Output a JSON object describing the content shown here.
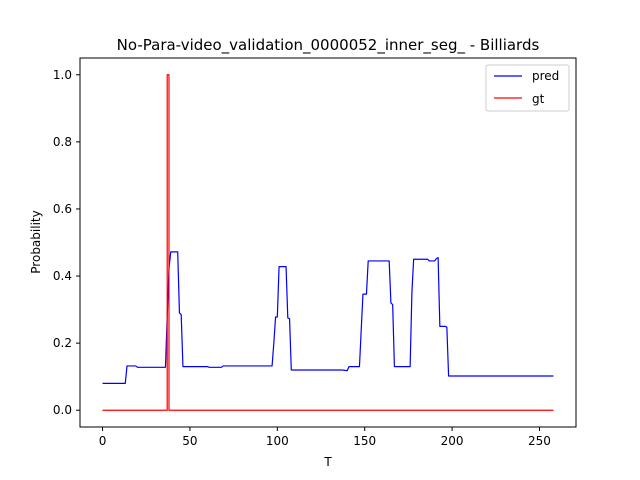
{
  "chart_data": {
    "type": "line",
    "title": "No-Para-video_validation_0000052_inner_seg_ - Billiards",
    "xlabel": "T",
    "ylabel": "Probability",
    "xlim": [
      -12.9,
      270.9
    ],
    "ylim": [
      -0.05,
      1.05
    ],
    "xticks": [
      0,
      50,
      100,
      150,
      200,
      250
    ],
    "yticks": [
      0.0,
      0.2,
      0.4,
      0.6,
      0.8,
      1.0
    ],
    "xtick_labels": [
      "0",
      "50",
      "100",
      "150",
      "200",
      "250"
    ],
    "ytick_labels": [
      "0.0",
      "0.2",
      "0.4",
      "0.6",
      "0.8",
      "1.0"
    ],
    "grid": false,
    "legend_position": "top-right",
    "series": [
      {
        "name": "pred",
        "color": "#0000ff",
        "x": [
          0,
          13,
          14,
          19,
          20,
          36,
          37,
          38,
          39,
          43,
          44,
          45,
          46,
          60,
          61,
          68,
          69,
          97,
          98,
          99,
          100,
          101,
          105,
          106,
          107,
          108,
          137,
          140,
          141,
          147,
          148,
          149,
          151,
          152,
          160,
          161,
          162,
          164,
          165,
          166,
          167,
          174,
          175,
          176,
          177,
          178,
          186,
          187,
          190,
          191,
          192,
          193,
          194,
          196,
          197,
          198,
          258
        ],
        "y": [
          0.08,
          0.08,
          0.132,
          0.132,
          0.128,
          0.128,
          0.28,
          0.42,
          0.472,
          0.472,
          0.29,
          0.285,
          0.13,
          0.13,
          0.128,
          0.128,
          0.132,
          0.132,
          0.2,
          0.278,
          0.278,
          0.428,
          0.428,
          0.275,
          0.273,
          0.12,
          0.12,
          0.118,
          0.13,
          0.13,
          0.24,
          0.346,
          0.346,
          0.445,
          0.445,
          0.445,
          0.445,
          0.445,
          0.32,
          0.315,
          0.13,
          0.13,
          0.13,
          0.13,
          0.35,
          0.45,
          0.45,
          0.445,
          0.445,
          0.452,
          0.455,
          0.25,
          0.25,
          0.25,
          0.248,
          0.102,
          0.102
        ]
      },
      {
        "name": "gt",
        "color": "#ff0000",
        "x": [
          0,
          37,
          37,
          38,
          38,
          258
        ],
        "y": [
          0,
          0,
          1,
          1,
          0,
          0
        ]
      }
    ]
  }
}
